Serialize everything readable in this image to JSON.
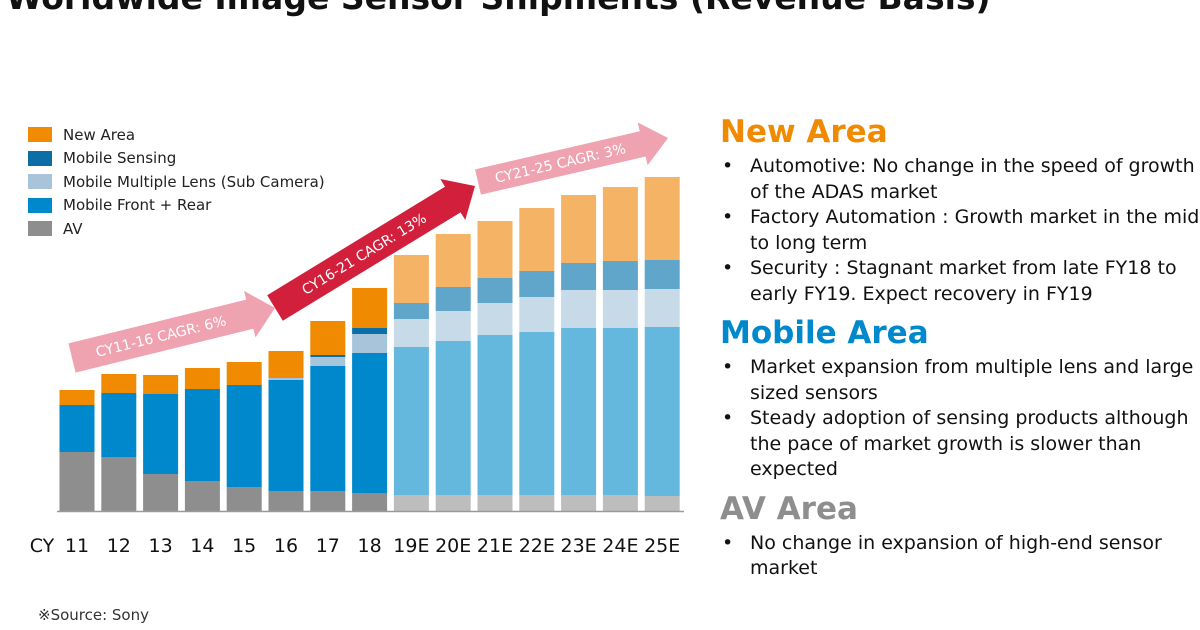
{
  "title": "Worldwide Image Sensor Shipments (Revenue Basis)",
  "source": "※Source: Sony",
  "chart_data": {
    "type": "bar",
    "stacked": true,
    "title": "Worldwide Image Sensor Shipments (Revenue Basis)",
    "x_prefix": "CY",
    "categories": [
      "11",
      "12",
      "13",
      "14",
      "15",
      "16",
      "17",
      "18",
      "19E",
      "20E",
      "21E",
      "22E",
      "23E",
      "24E",
      "25E"
    ],
    "forecast_from_index": 8,
    "units": "relative (no y-axis shown)",
    "legend_placement": "top-left",
    "grid": false,
    "series": [
      {
        "name": "AV",
        "color": "#8E8E8E",
        "forecast_color": "#BDBDBD",
        "values": [
          59,
          54,
          37,
          30,
          24,
          20,
          20,
          18,
          16,
          16,
          16,
          16,
          16,
          16,
          15
        ]
      },
      {
        "name": "Mobile Front + Rear",
        "color": "#0088CC",
        "forecast_color": "#64B8DE",
        "values": [
          47,
          64,
          80,
          92,
          102,
          111,
          125,
          140,
          148,
          154,
          160,
          163,
          167,
          167,
          169
        ]
      },
      {
        "name": "Mobile Multiple Lens (Sub Camera)",
        "color": "#A7C4DA",
        "forecast_color": "#C6DBE7",
        "values": [
          0,
          0,
          0,
          0,
          0,
          2,
          9,
          19,
          28,
          30,
          32,
          35,
          38,
          38,
          38
        ]
      },
      {
        "name": "Mobile Sensing",
        "color": "#0C6EA6",
        "forecast_color": "#5FA6CA",
        "values": [
          0,
          0,
          0,
          0,
          0,
          0,
          2,
          6,
          16,
          24,
          25,
          26,
          27,
          29,
          29
        ]
      },
      {
        "name": "New Area",
        "color": "#F08A00",
        "forecast_color": "#F5B366",
        "values": [
          15,
          19,
          19,
          21,
          23,
          27,
          34,
          40,
          48,
          53,
          57,
          63,
          68,
          74,
          83
        ]
      }
    ],
    "annotations": [
      {
        "text": "CY11-16 CAGR: 6%",
        "color": "#EFA3B0"
      },
      {
        "text": "CY16-21 CAGR: 13%",
        "color": "#D2203C"
      },
      {
        "text": "CY21-25 CAGR: 3%",
        "color": "#EFA3B0"
      }
    ]
  },
  "sections": [
    {
      "title": "New Area",
      "color": "#F08A00",
      "bullets": [
        "Automotive: No change in the speed of growth of the ADAS market",
        "Factory Automation : Growth market in the mid to long term",
        "Security : Stagnant market from late FY18 to early FY19. Expect recovery in FY19"
      ]
    },
    {
      "title": "Mobile Area",
      "color": "#0088CC",
      "bullets": [
        "Market expansion from multiple lens and large sized sensors",
        "Steady adoption of sensing products although the pace of market growth is slower than expected"
      ]
    },
    {
      "title": "AV Area",
      "color": "#8E8E8E",
      "bullets": [
        "No change in expansion of high-end sensor market"
      ]
    }
  ]
}
